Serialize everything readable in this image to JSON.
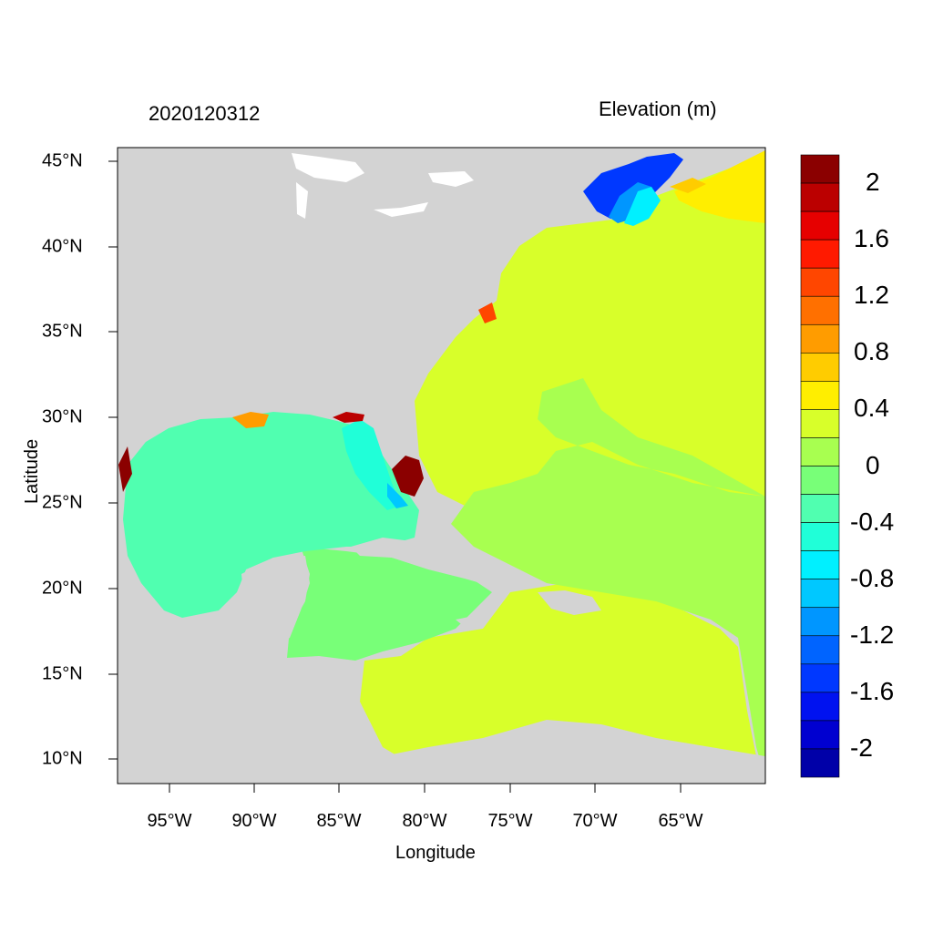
{
  "map": {
    "title_left": "2020120312",
    "title_right": "Elevation (m)",
    "xlabel": "Longitude",
    "ylabel": "Latitude",
    "x_ticks": [
      "95°W",
      "90°W",
      "85°W",
      "80°W",
      "75°W",
      "70°W",
      "65°W"
    ],
    "y_ticks": [
      "45°N",
      "40°N",
      "35°N",
      "30°N",
      "25°N",
      "20°N",
      "15°N",
      "10°N"
    ],
    "colorbar": {
      "labels": [
        "2",
        "1.6",
        "1.2",
        "0.8",
        "0.4",
        "0",
        "-0.4",
        "-0.8",
        "-1.2",
        "-1.6",
        "-2"
      ],
      "colors": [
        "#8b0000",
        "#bb0000",
        "#e60000",
        "#ff1a00",
        "#ff4600",
        "#ff7000",
        "#ff9c00",
        "#ffcc00",
        "#ffee00",
        "#d8ff2a",
        "#a8ff50",
        "#78ff78",
        "#50ffb0",
        "#20ffd8",
        "#00f0ff",
        "#00c8ff",
        "#0096ff",
        "#0064ff",
        "#0038ff",
        "#0012f0",
        "#0000d0",
        "#0000a8"
      ]
    },
    "legend": {
      "land": "#d3d3d3",
      "frame": "#000000"
    }
  }
}
